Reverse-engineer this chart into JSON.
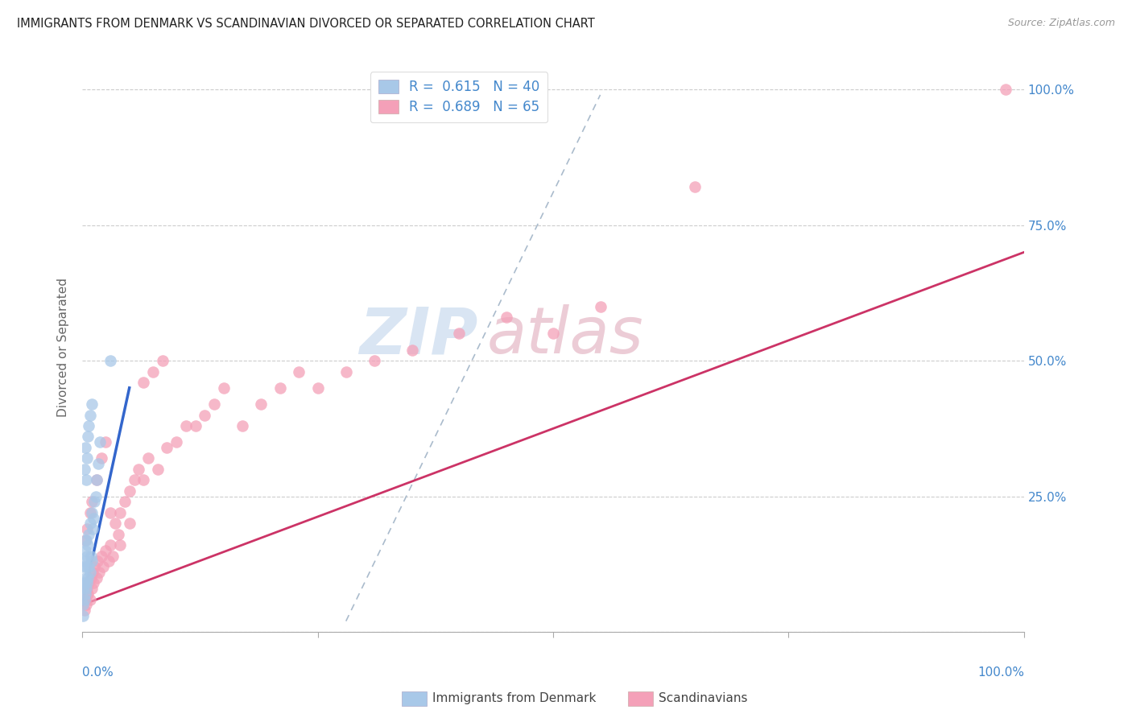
{
  "title": "IMMIGRANTS FROM DENMARK VS SCANDINAVIAN DIVORCED OR SEPARATED CORRELATION CHART",
  "source": "Source: ZipAtlas.com",
  "legend_label1": "Immigrants from Denmark",
  "legend_label2": "Scandinavians",
  "R1": 0.615,
  "N1": 40,
  "R2": 0.689,
  "N2": 65,
  "color1": "#a8c8e8",
  "color2": "#f4a0b8",
  "color1_edge": "#88aacc",
  "color2_edge": "#e080a0",
  "line1_color": "#3366cc",
  "line2_color": "#cc3366",
  "dashed_line_color": "#aabbcc",
  "background_color": "#ffffff",
  "grid_color": "#cccccc",
  "title_color": "#222222",
  "axis_label_color": "#4488cc",
  "ylabel_color": "#666666",
  "watermark_zip_color": "#d0dff0",
  "watermark_atlas_color": "#e8c0cc",
  "denmark_x": [
    0.001,
    0.001,
    0.001,
    0.002,
    0.002,
    0.002,
    0.003,
    0.003,
    0.003,
    0.004,
    0.004,
    0.004,
    0.005,
    0.005,
    0.006,
    0.006,
    0.007,
    0.007,
    0.008,
    0.008,
    0.009,
    0.01,
    0.01,
    0.011,
    0.012,
    0.013,
    0.014,
    0.015,
    0.017,
    0.019,
    0.002,
    0.003,
    0.004,
    0.005,
    0.006,
    0.007,
    0.008,
    0.01,
    0.03,
    0.001
  ],
  "denmark_y": [
    0.05,
    0.08,
    0.12,
    0.06,
    0.09,
    0.13,
    0.07,
    0.1,
    0.15,
    0.08,
    0.12,
    0.17,
    0.09,
    0.14,
    0.1,
    0.16,
    0.12,
    0.18,
    0.11,
    0.2,
    0.14,
    0.13,
    0.22,
    0.19,
    0.21,
    0.24,
    0.25,
    0.28,
    0.31,
    0.35,
    0.3,
    0.34,
    0.28,
    0.32,
    0.36,
    0.38,
    0.4,
    0.42,
    0.5,
    0.03
  ],
  "scand_x": [
    0.002,
    0.003,
    0.004,
    0.005,
    0.006,
    0.007,
    0.008,
    0.009,
    0.01,
    0.011,
    0.012,
    0.013,
    0.015,
    0.016,
    0.018,
    0.02,
    0.022,
    0.025,
    0.028,
    0.03,
    0.032,
    0.035,
    0.038,
    0.04,
    0.045,
    0.05,
    0.055,
    0.06,
    0.065,
    0.07,
    0.08,
    0.09,
    0.1,
    0.11,
    0.12,
    0.13,
    0.14,
    0.15,
    0.17,
    0.19,
    0.21,
    0.23,
    0.25,
    0.28,
    0.31,
    0.35,
    0.4,
    0.45,
    0.5,
    0.55,
    0.003,
    0.005,
    0.008,
    0.01,
    0.015,
    0.02,
    0.025,
    0.03,
    0.04,
    0.05,
    0.065,
    0.075,
    0.085,
    0.65,
    0.98
  ],
  "scand_y": [
    0.04,
    0.06,
    0.05,
    0.08,
    0.07,
    0.09,
    0.06,
    0.1,
    0.08,
    0.11,
    0.09,
    0.12,
    0.1,
    0.13,
    0.11,
    0.14,
    0.12,
    0.15,
    0.13,
    0.16,
    0.14,
    0.2,
    0.18,
    0.22,
    0.24,
    0.26,
    0.28,
    0.3,
    0.28,
    0.32,
    0.3,
    0.34,
    0.35,
    0.38,
    0.38,
    0.4,
    0.42,
    0.45,
    0.38,
    0.42,
    0.45,
    0.48,
    0.45,
    0.48,
    0.5,
    0.52,
    0.55,
    0.58,
    0.55,
    0.6,
    0.17,
    0.19,
    0.22,
    0.24,
    0.28,
    0.32,
    0.35,
    0.22,
    0.16,
    0.2,
    0.46,
    0.48,
    0.5,
    0.82,
    1.0
  ],
  "xmin": 0.0,
  "xmax": 1.0,
  "ymin": 0.0,
  "ymax": 1.05,
  "yticks": [
    0.0,
    0.25,
    0.5,
    0.75,
    1.0
  ],
  "ytick_labels": [
    "",
    "25.0%",
    "50.0%",
    "75.0%",
    "100.0%"
  ],
  "xticks": [
    0.0,
    0.25,
    0.5,
    0.75,
    1.0
  ],
  "blue_line_x": [
    0.0,
    0.05
  ],
  "blue_line_y": [
    0.05,
    0.45
  ],
  "pink_line_x": [
    0.0,
    1.0
  ],
  "pink_line_y": [
    0.05,
    0.7
  ],
  "dash_line_x": [
    0.28,
    0.55
  ],
  "dash_line_y": [
    0.02,
    0.99
  ]
}
